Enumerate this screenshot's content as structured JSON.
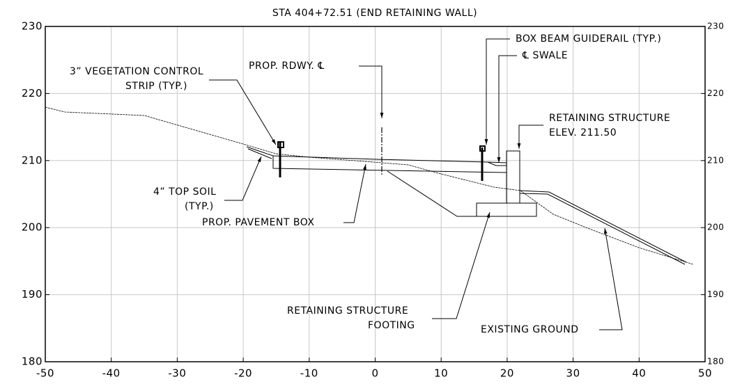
{
  "title": "STA 404+72.51 (END RETAINING WALL)",
  "axes": {
    "xlim": [
      -50,
      50
    ],
    "ylim": [
      180,
      230
    ],
    "xticks": [
      -50,
      -40,
      -30,
      -20,
      -10,
      0,
      10,
      20,
      30,
      40,
      50
    ],
    "yticks": [
      180,
      190,
      200,
      210,
      220,
      230
    ]
  },
  "labels": {
    "vegetation": [
      "3” VEGETATION CONTROL",
      "STRIP (TYP.)"
    ],
    "centerline": "PROP. RDWY. ℄",
    "guiderail": "BOX BEAM GUIDERAIL (TYP.)",
    "swale": "℄ SWALE",
    "structure": [
      "RETAINING STRUCTURE",
      "ELEV. 211.50"
    ],
    "topsoil": [
      "4” TOP SOIL",
      "(TYP.)"
    ],
    "pavement": "PROP. PAVEMENT BOX",
    "footing": [
      "RETAINING STRUCTURE",
      "FOOTING"
    ],
    "ground": "EXISTING GROUND"
  }
}
